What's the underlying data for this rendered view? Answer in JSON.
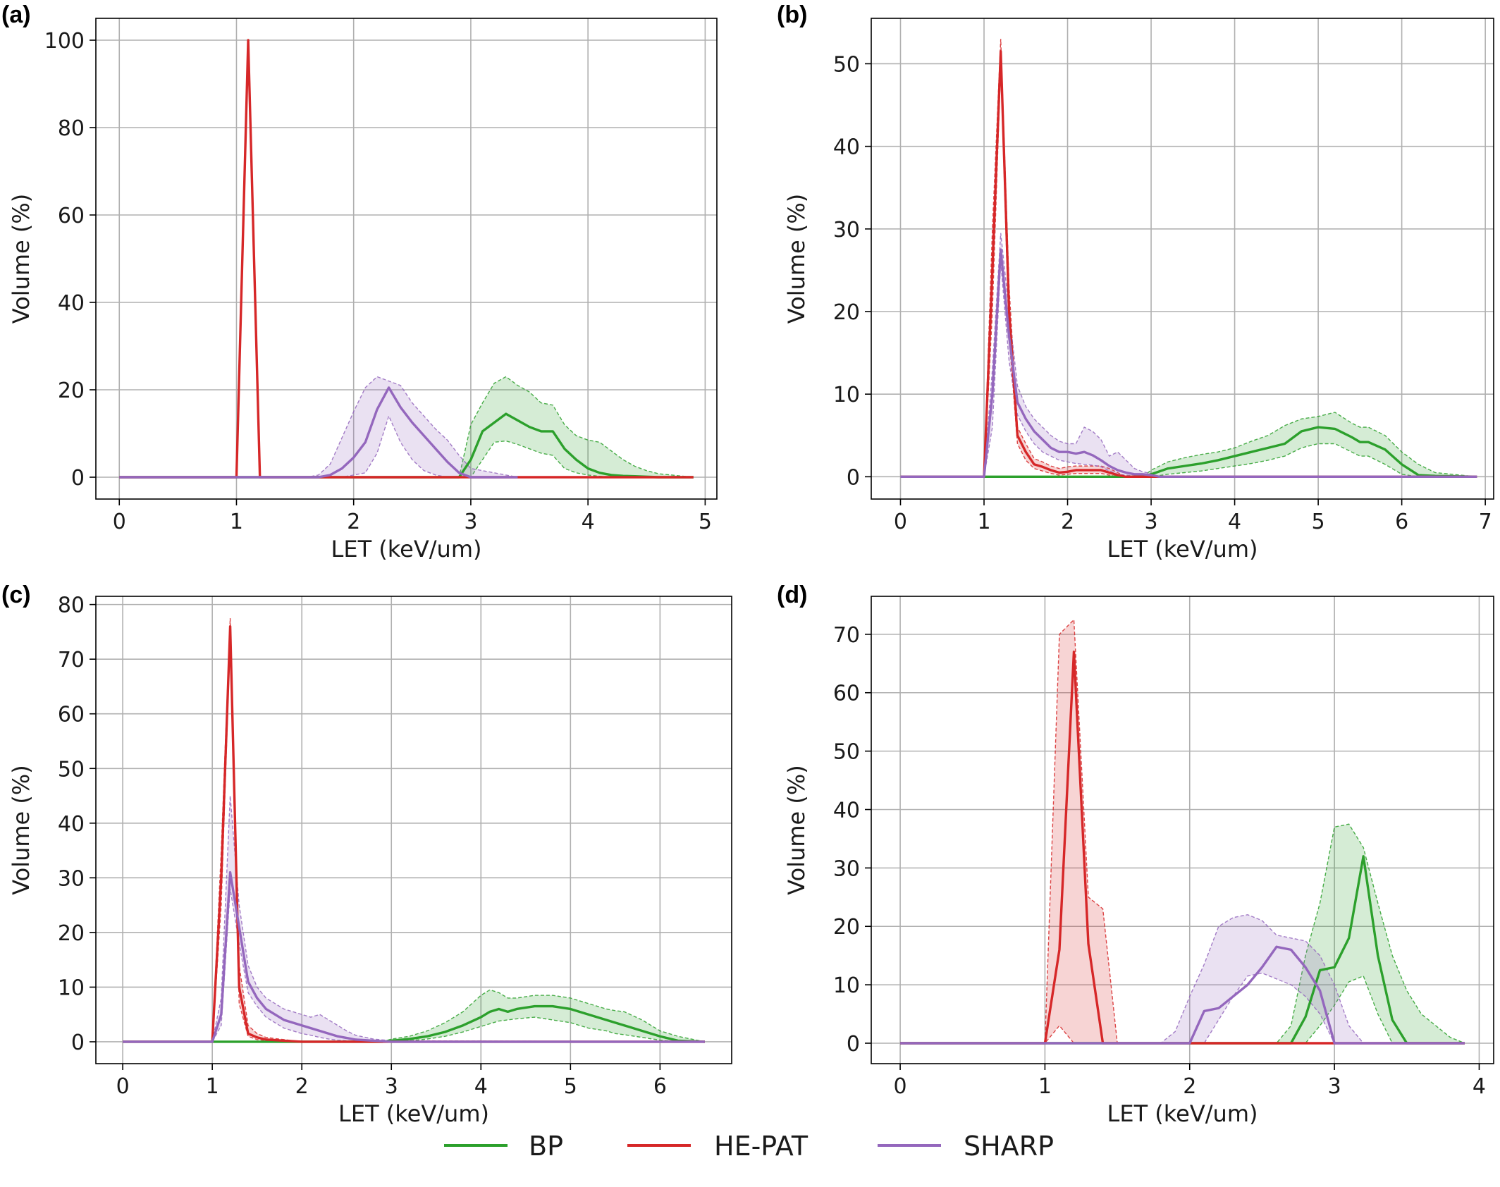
{
  "colors": {
    "BP": "#2ca02c",
    "HE-PAT": "#d62728",
    "SHARP": "#9467bd"
  },
  "legend": [
    {
      "name": "BP",
      "color": "#2ca02c"
    },
    {
      "name": "HE-PAT",
      "color": "#d62728"
    },
    {
      "name": "SHARP",
      "color": "#9467bd"
    }
  ],
  "chart_data": [
    {
      "panel": "(a)",
      "type": "line",
      "xlabel": "LET (keV/um)",
      "ylabel": "Volume (%)",
      "xlim": [
        -0.2,
        5.1
      ],
      "ylim": [
        -5,
        105
      ],
      "xticks": [
        0,
        1,
        2,
        3,
        4,
        5
      ],
      "yticks": [
        0,
        20,
        40,
        60,
        80,
        100
      ],
      "grid": true,
      "series": [
        {
          "name": "BP",
          "x": [
            0,
            2.9,
            3.0,
            3.1,
            3.2,
            3.3,
            3.4,
            3.5,
            3.6,
            3.7,
            3.8,
            3.9,
            4.0,
            4.1,
            4.2,
            4.3,
            4.4,
            4.5,
            4.6,
            4.9
          ],
          "y": [
            0,
            0,
            4,
            10.5,
            12.5,
            14.5,
            13,
            11.5,
            10.5,
            10.5,
            6.5,
            4,
            2,
            1,
            0.5,
            0.3,
            0.2,
            0.1,
            0,
            0
          ],
          "lower": [
            0,
            0,
            0,
            4,
            8,
            8.3,
            7.5,
            6.5,
            5.5,
            5,
            2,
            1,
            0.5,
            0.2,
            0.1,
            0,
            0,
            0,
            0,
            0
          ],
          "upper": [
            0,
            0,
            12,
            17,
            21.5,
            23,
            21,
            19.5,
            17,
            16.5,
            12,
            9.5,
            8.5,
            8,
            6,
            4,
            2.5,
            1.5,
            0.8,
            0
          ]
        },
        {
          "name": "HE-PAT",
          "x": [
            0,
            1.0,
            1.1,
            1.2,
            1.3,
            4.9
          ],
          "y": [
            0,
            0,
            100,
            0,
            0,
            0
          ]
        },
        {
          "name": "SHARP",
          "x": [
            0,
            1.6,
            1.7,
            1.8,
            1.9,
            2.0,
            2.1,
            2.2,
            2.3,
            2.4,
            2.5,
            2.6,
            2.7,
            2.8,
            2.9,
            3.0,
            3.4
          ],
          "y": [
            0,
            0,
            0,
            0.5,
            2,
            4.5,
            8,
            15.5,
            20.5,
            16,
            12.5,
            9.5,
            6.5,
            3.5,
            1,
            0,
            0
          ],
          "lower": [
            0,
            0,
            0,
            0,
            0,
            0.5,
            1,
            5.5,
            14,
            8,
            4,
            1.5,
            0.5,
            0,
            0,
            0,
            0
          ],
          "upper": [
            0,
            0,
            0.5,
            3,
            9,
            15,
            20.5,
            23,
            22,
            21,
            17,
            14,
            11,
            8.5,
            5,
            2,
            0
          ]
        }
      ]
    },
    {
      "panel": "(b)",
      "type": "line",
      "xlabel": "LET (keV/um)",
      "ylabel": "Volume (%)",
      "xlim": [
        -0.35,
        7.1
      ],
      "ylim": [
        -2.7,
        55.5
      ],
      "xticks": [
        0,
        1,
        2,
        3,
        4,
        5,
        6,
        7
      ],
      "yticks": [
        0,
        10,
        20,
        30,
        40,
        50
      ],
      "grid": true,
      "series": [
        {
          "name": "BP",
          "x": [
            0,
            2.9,
            3.0,
            3.2,
            3.4,
            3.6,
            3.8,
            4.0,
            4.2,
            4.4,
            4.6,
            4.8,
            5.0,
            5.2,
            5.4,
            5.5,
            5.6,
            5.8,
            6.0,
            6.2,
            6.4,
            6.9
          ],
          "y": [
            0,
            0,
            0.3,
            1,
            1.3,
            1.6,
            2,
            2.5,
            3,
            3.5,
            4,
            5.5,
            6,
            5.8,
            4.8,
            4.2,
            4.2,
            3.3,
            1.5,
            0.2,
            0.1,
            0
          ],
          "lower": [
            0,
            0,
            0,
            0.3,
            0.5,
            0.7,
            1,
            1.3,
            1.6,
            2,
            2.5,
            3.5,
            4,
            4,
            3,
            2.5,
            2.5,
            1.5,
            0.3,
            0,
            0,
            0
          ],
          "upper": [
            0,
            0,
            0.8,
            1.8,
            2.3,
            2.7,
            3,
            3.5,
            4.3,
            5,
            6.2,
            7,
            7.3,
            7.8,
            6.5,
            6,
            6,
            5,
            3,
            1.5,
            0.5,
            0
          ]
        },
        {
          "name": "HE-PAT",
          "x": [
            0,
            1.0,
            1.1,
            1.2,
            1.3,
            1.4,
            1.5,
            1.6,
            1.7,
            1.8,
            1.9,
            2.0,
            2.1,
            2.2,
            2.3,
            2.4,
            2.5,
            2.6,
            2.7,
            6.9
          ],
          "y": [
            0,
            0,
            25,
            51.5,
            20,
            5,
            3,
            1.5,
            1.2,
            0.8,
            0.5,
            0.6,
            0.8,
            0.8,
            0.8,
            0.8,
            0.5,
            0.2,
            0,
            0
          ],
          "lower": [
            0,
            0,
            20,
            50,
            17,
            4,
            2,
            1,
            0.7,
            0.4,
            0.2,
            0.3,
            0.4,
            0.4,
            0.4,
            0.4,
            0.2,
            0,
            0,
            0
          ],
          "upper": [
            0,
            0,
            30,
            53,
            23,
            6,
            4,
            2.2,
            1.8,
            1.3,
            1,
            1.2,
            1.3,
            1.3,
            1.3,
            1.3,
            1,
            0.5,
            0,
            0
          ]
        },
        {
          "name": "SHARP",
          "x": [
            0,
            1.0,
            1.1,
            1.2,
            1.3,
            1.4,
            1.5,
            1.6,
            1.7,
            1.8,
            1.9,
            2.0,
            2.1,
            2.2,
            2.3,
            2.4,
            2.5,
            2.6,
            2.7,
            2.8,
            2.9,
            3.0,
            3.1,
            6.9
          ],
          "y": [
            0,
            0,
            10,
            27.5,
            17,
            9,
            7,
            5.5,
            4.5,
            3.5,
            3,
            3,
            2.8,
            3,
            2.6,
            2,
            1.3,
            0.8,
            0.5,
            0.3,
            0.3,
            0.2,
            0,
            0
          ],
          "lower": [
            0,
            0,
            6,
            26,
            14,
            7.5,
            5.5,
            4,
            3,
            2.5,
            2,
            1.8,
            1.6,
            1.5,
            1.4,
            1.2,
            0.7,
            0.3,
            0.2,
            0.1,
            0.1,
            0,
            0,
            0
          ],
          "upper": [
            0,
            0,
            13,
            29.5,
            20,
            11,
            8.5,
            7,
            6,
            5,
            4.3,
            4,
            4,
            6,
            5.5,
            4.5,
            2.5,
            3,
            2,
            1,
            0.6,
            0.4,
            0,
            0
          ]
        }
      ]
    },
    {
      "panel": "(c)",
      "type": "line",
      "xlabel": "LET (keV/um)",
      "ylabel": "Volume (%)",
      "xlim": [
        -0.3,
        6.8
      ],
      "ylim": [
        -4,
        81.5
      ],
      "xticks": [
        0,
        1,
        2,
        3,
        4,
        5,
        6
      ],
      "yticks": [
        0,
        10,
        20,
        30,
        40,
        50,
        60,
        70,
        80
      ],
      "grid": true,
      "series": [
        {
          "name": "BP",
          "x": [
            0,
            2.9,
            3.0,
            3.2,
            3.4,
            3.6,
            3.8,
            4.0,
            4.1,
            4.2,
            4.3,
            4.4,
            4.6,
            4.8,
            5.0,
            5.2,
            5.4,
            5.5,
            5.6,
            5.8,
            6.0,
            6.2,
            6.5
          ],
          "y": [
            0,
            0,
            0.2,
            0.5,
            1,
            1.8,
            3,
            4.5,
            5.5,
            6,
            5.5,
            6,
            6.5,
            6.5,
            6,
            5,
            4,
            3.5,
            3,
            2,
            1,
            0.2,
            0
          ],
          "lower": [
            0,
            0,
            0,
            0.2,
            0.5,
            1,
            1.8,
            2.8,
            3.3,
            3.8,
            4,
            4.2,
            4.5,
            4,
            3.5,
            2.5,
            2,
            1.5,
            1.3,
            0.8,
            0.3,
            0,
            0
          ],
          "upper": [
            0,
            0,
            0.5,
            1,
            2,
            3.5,
            5.5,
            8.5,
            9.5,
            9,
            8,
            8,
            8.5,
            8.5,
            8,
            7,
            6,
            5.7,
            5.5,
            4,
            2,
            1,
            0
          ]
        },
        {
          "name": "HE-PAT",
          "x": [
            0,
            1.0,
            1.1,
            1.2,
            1.3,
            1.4,
            1.5,
            1.6,
            1.8,
            2.0,
            6.5
          ],
          "y": [
            0,
            0,
            30,
            76,
            10,
            1.5,
            0.8,
            0.4,
            0.2,
            0,
            0
          ],
          "lower": [
            0,
            0,
            25,
            74,
            7,
            1,
            0.4,
            0.2,
            0.1,
            0,
            0
          ],
          "upper": [
            0,
            0,
            35,
            77.5,
            14,
            3,
            1.5,
            0.8,
            0.4,
            0,
            0
          ]
        },
        {
          "name": "SHARP",
          "x": [
            0,
            1.0,
            1.1,
            1.2,
            1.3,
            1.4,
            1.5,
            1.6,
            1.7,
            1.8,
            1.9,
            2.0,
            2.1,
            2.2,
            2.3,
            2.4,
            2.5,
            2.6,
            2.8,
            3.0,
            6.5
          ],
          "y": [
            0,
            0,
            5,
            31,
            21,
            11,
            8,
            6,
            5,
            4,
            3.5,
            3,
            2.5,
            2,
            1.5,
            1,
            0.7,
            0.4,
            0.2,
            0,
            0
          ],
          "lower": [
            0,
            0,
            3,
            28,
            18,
            9,
            6.5,
            4.5,
            3.5,
            2.5,
            2,
            1.5,
            1.2,
            0.8,
            0.5,
            0.3,
            0.2,
            0.1,
            0,
            0,
            0
          ],
          "upper": [
            0,
            0,
            8,
            45,
            25,
            14,
            10,
            8,
            7,
            6,
            5.5,
            5,
            4.5,
            5,
            4,
            3,
            2,
            1.2,
            0.5,
            0.2,
            0
          ]
        }
      ]
    },
    {
      "panel": "(d)",
      "type": "line",
      "xlabel": "LET (keV/um)",
      "ylabel": "Volume (%)",
      "xlim": [
        -0.2,
        4.1
      ],
      "ylim": [
        -3.5,
        76.5
      ],
      "xticks": [
        0,
        1,
        2,
        3,
        4
      ],
      "yticks": [
        0,
        10,
        20,
        30,
        40,
        50,
        60,
        70
      ],
      "grid": true,
      "series": [
        {
          "name": "BP",
          "x": [
            0,
            2.6,
            2.7,
            2.8,
            2.9,
            3.0,
            3.1,
            3.2,
            3.3,
            3.4,
            3.5,
            3.6,
            3.7,
            3.8,
            3.9
          ],
          "y": [
            0,
            0,
            0,
            4.5,
            12.5,
            13,
            18,
            32,
            15,
            4,
            0,
            0,
            0,
            0,
            0
          ],
          "lower": [
            0,
            0,
            0,
            0,
            3,
            6.5,
            10.5,
            11.5,
            5,
            0,
            0,
            0,
            0,
            0,
            0
          ],
          "upper": [
            0,
            0,
            3,
            15,
            24,
            37,
            37.5,
            33.5,
            24,
            15,
            9,
            5,
            3,
            1,
            0
          ]
        },
        {
          "name": "HE-PAT",
          "x": [
            0,
            1.0,
            1.1,
            1.2,
            1.3,
            1.4,
            1.5,
            3.9
          ],
          "y": [
            0,
            0,
            16,
            67,
            17,
            0,
            0,
            0
          ],
          "lower": [
            0,
            0,
            3,
            0,
            0,
            0,
            0,
            0
          ],
          "upper": [
            0,
            0,
            70,
            72.5,
            25,
            23,
            0,
            0
          ]
        },
        {
          "name": "SHARP",
          "x": [
            0,
            1.7,
            1.8,
            1.9,
            2.0,
            2.1,
            2.2,
            2.3,
            2.4,
            2.5,
            2.6,
            2.7,
            2.8,
            2.9,
            3.0,
            3.1,
            3.2,
            3.9
          ],
          "y": [
            0,
            0,
            0,
            0,
            0,
            5.5,
            6,
            8,
            10,
            13,
            16.5,
            16,
            13,
            9,
            0,
            0,
            0,
            0
          ],
          "lower": [
            0,
            0,
            0,
            0,
            0,
            0,
            4,
            8,
            11.5,
            12,
            11,
            10,
            8,
            5,
            0,
            0,
            0,
            0
          ],
          "upper": [
            0,
            0,
            0,
            2,
            8,
            13.5,
            20,
            21.5,
            22,
            21,
            18.5,
            18,
            17.5,
            15,
            10,
            3,
            0,
            0
          ]
        }
      ]
    }
  ]
}
